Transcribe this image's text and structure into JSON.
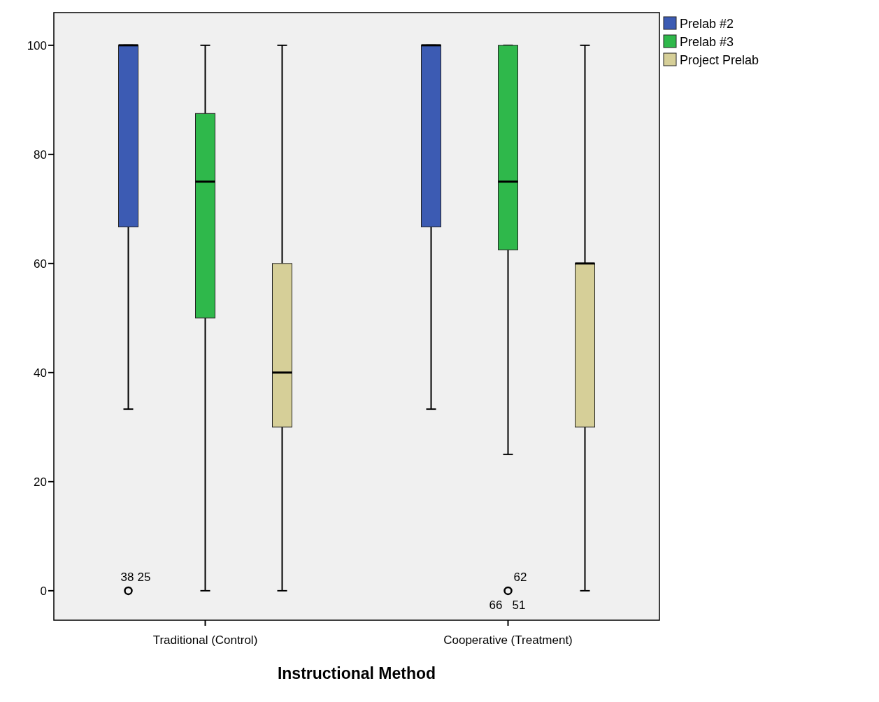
{
  "chart_data": {
    "type": "box",
    "xlabel": "Instructional Method",
    "categories": [
      "Traditional (Control)",
      "Cooperative (Treatment)"
    ],
    "ylim": [
      -5.4,
      106
    ],
    "yticks": [
      0,
      20,
      40,
      60,
      80,
      100
    ],
    "grid": false,
    "legend": "top right",
    "series": [
      {
        "name": "Prelab #2",
        "color": "#3c5bb3",
        "boxes": [
          {
            "low": 33.3,
            "q1": 66.7,
            "median": 100,
            "q3": 100,
            "high": 100,
            "outliers": [
              0
            ]
          },
          {
            "low": 33.3,
            "q1": 66.7,
            "median": 100,
            "q3": 100,
            "high": 100
          }
        ]
      },
      {
        "name": "Prelab #3",
        "color": "#2fb84b",
        "boxes": [
          {
            "low": 0,
            "q1": 50,
            "median": 75,
            "q3": 87.5,
            "high": 100
          },
          {
            "low": 25,
            "q1": 62.5,
            "median": 75,
            "q3": 100,
            "high": 100,
            "outliers": [
              0
            ]
          }
        ]
      },
      {
        "name": "Project Prelab",
        "color": "#d6cf98",
        "boxes": [
          {
            "low": 0,
            "q1": 30,
            "median": 40,
            "q3": 60,
            "high": 100
          },
          {
            "low": 0,
            "q1": 30,
            "median": 60,
            "q3": 60,
            "high": 100
          }
        ]
      }
    ],
    "annotations": [
      "38",
      "25",
      "62",
      "66",
      "51"
    ]
  }
}
